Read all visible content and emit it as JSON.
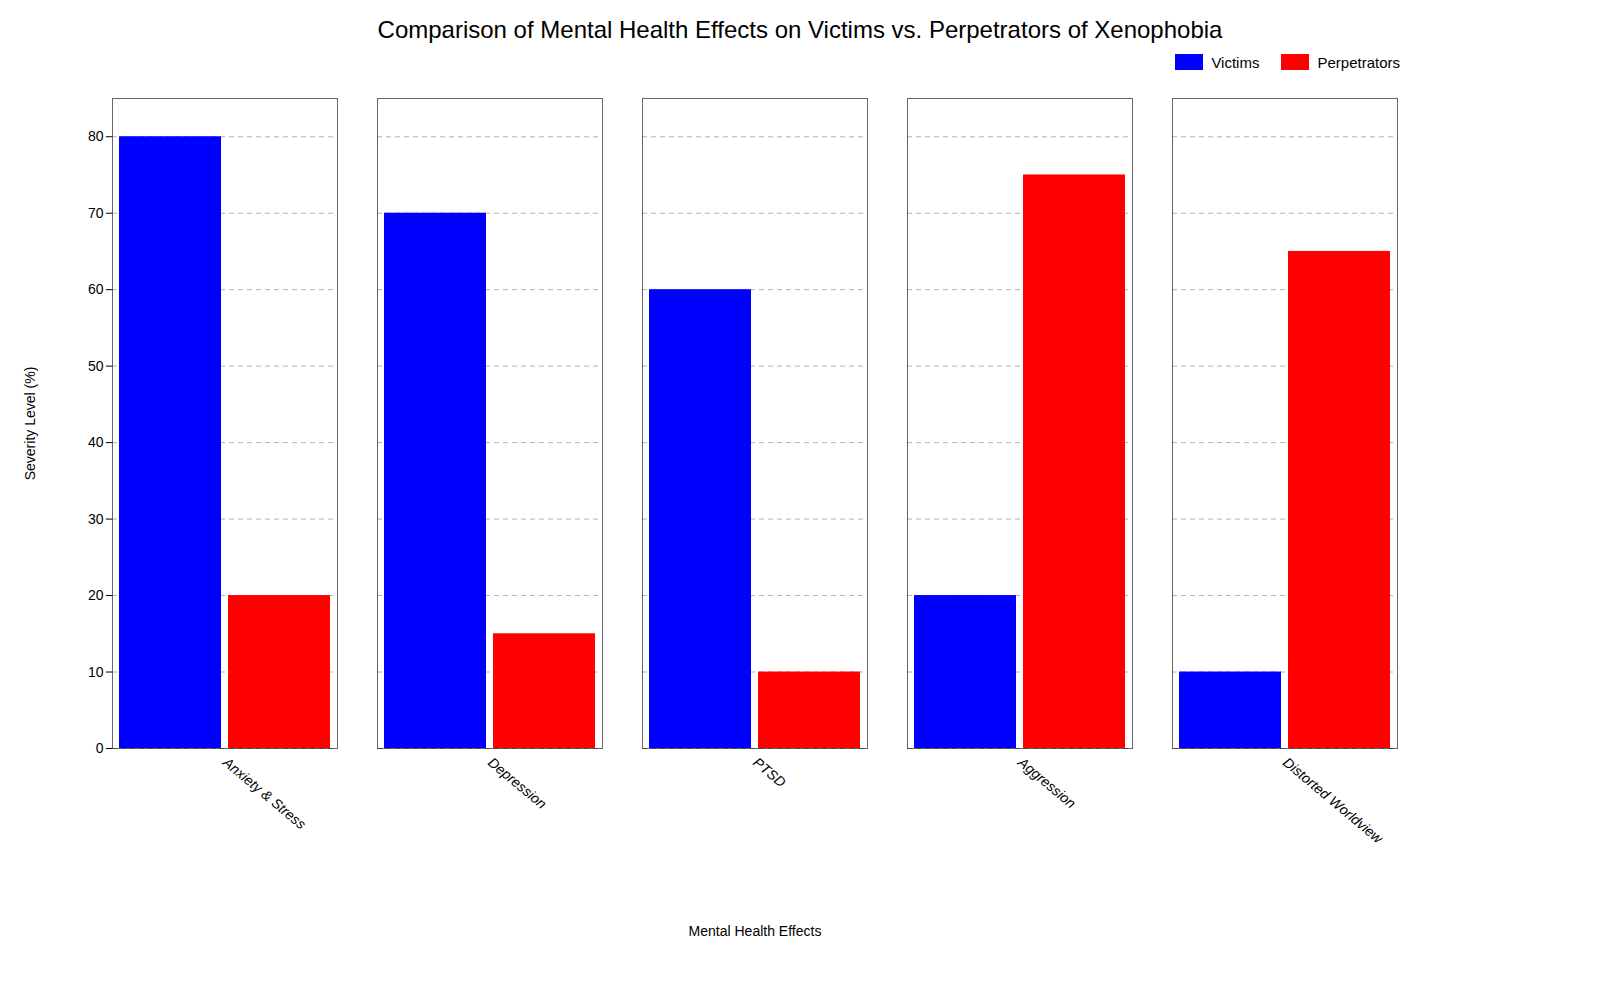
{
  "chart_data": {
    "type": "bar",
    "title": "Comparison of Mental Health Effects on Victims vs. Perpetrators of Xenophobia",
    "xlabel": "Mental Health Effects",
    "ylabel": "Severity Level (%)",
    "categories": [
      "Anxiety & Stress",
      "Depression",
      "PTSD",
      "Aggression",
      "Distorted Worldview"
    ],
    "series": [
      {
        "name": "Victims",
        "color": "#0000ff",
        "values": [
          80,
          70,
          60,
          20,
          10
        ]
      },
      {
        "name": "Perpetrators",
        "color": "#ff0000",
        "values": [
          20,
          15,
          10,
          75,
          65
        ]
      }
    ],
    "ylim": [
      0,
      85
    ],
    "yticks": [
      0,
      10,
      20,
      30,
      40,
      50,
      60,
      70,
      80
    ],
    "grid": true,
    "legend": "upper right"
  }
}
